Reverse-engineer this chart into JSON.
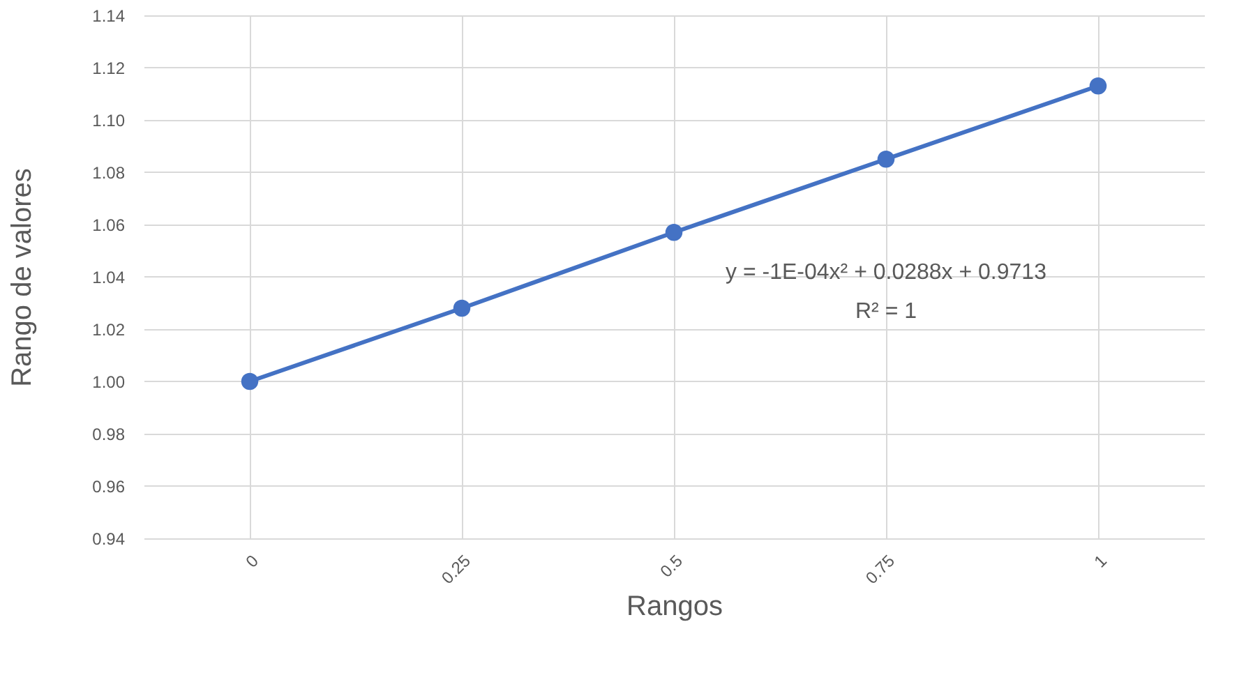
{
  "chart_data": {
    "type": "line",
    "xlabel": "Rangos",
    "ylabel": "Rango de valores",
    "categories": [
      "0",
      "0.25",
      "0.5",
      "0.75",
      "1"
    ],
    "series": [
      {
        "color": "#4472c4",
        "values": [
          1.0,
          1.028,
          1.057,
          1.085,
          1.113
        ]
      }
    ],
    "ylim": [
      0.94,
      1.14
    ],
    "yticks": [
      {
        "value": 0.94,
        "label": "0.94"
      },
      {
        "value": 0.96,
        "label": "0.96"
      },
      {
        "value": 0.98,
        "label": "0.98"
      },
      {
        "value": 1.0,
        "label": "1.00"
      },
      {
        "value": 1.02,
        "label": "1.02"
      },
      {
        "value": 1.04,
        "label": "1.04"
      },
      {
        "value": 1.06,
        "label": "1.06"
      },
      {
        "value": 1.08,
        "label": "1.08"
      },
      {
        "value": 1.1,
        "label": "1.10"
      },
      {
        "value": 1.12,
        "label": "1.12"
      },
      {
        "value": 1.14,
        "label": "1.14"
      }
    ],
    "grid": true,
    "marker": "circle",
    "line_style": "solid",
    "annotations": [
      "y = -1E-04x² + 0.0288x + 0.9713",
      "R² = 1"
    ]
  }
}
